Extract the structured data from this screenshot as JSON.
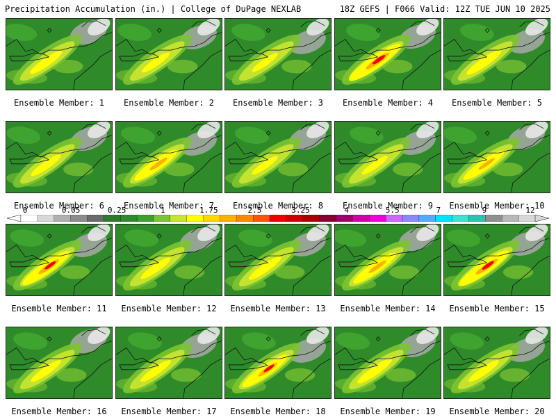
{
  "header": {
    "title_left": "Precipitation Accumulation (in.) | College of DuPage NEXLAB",
    "title_right": "18Z GEFS | F066 Valid: 12Z TUE JUN 10 2025"
  },
  "panels": [
    {
      "label": "Ensemble Member: 1",
      "intensity": 0.35
    },
    {
      "label": "Ensemble Member: 2",
      "intensity": 0.25
    },
    {
      "label": "Ensemble Member: 3",
      "intensity": 0.2
    },
    {
      "label": "Ensemble Member: 4",
      "intensity": 0.8
    },
    {
      "label": "Ensemble Member: 5",
      "intensity": 0.4
    },
    {
      "label": "Ensemble Member: 6",
      "intensity": 0.3
    },
    {
      "label": "Ensemble Member: 7",
      "intensity": 0.6
    },
    {
      "label": "Ensemble Member: 8",
      "intensity": 0.2
    },
    {
      "label": "Ensemble Member: 9",
      "intensity": 0.2
    },
    {
      "label": "Ensemble Member: 10",
      "intensity": 0.55
    },
    {
      "label": "Ensemble Member: 11",
      "intensity": 0.7
    },
    {
      "label": "Ensemble Member: 12",
      "intensity": 0.3
    },
    {
      "label": "Ensemble Member: 13",
      "intensity": 0.35
    },
    {
      "label": "Ensemble Member: 14",
      "intensity": 0.6
    },
    {
      "label": "Ensemble Member: 15",
      "intensity": 0.75
    },
    {
      "label": "Ensemble Member: 16",
      "intensity": 0.3
    },
    {
      "label": "Ensemble Member: 17",
      "intensity": 0.3
    },
    {
      "label": "Ensemble Member: 18",
      "intensity": 0.65
    },
    {
      "label": "Ensemble Member: 19",
      "intensity": 0.4
    },
    {
      "label": "Ensemble Member: 20",
      "intensity": 0.3
    }
  ],
  "colorbar": {
    "tick_labels": [
      "0",
      "0.05",
      "0.25",
      "1",
      "1.75",
      "2.5",
      "3.25",
      "4",
      "5.5",
      "7",
      "9",
      "12"
    ],
    "colors": [
      "#ffffff",
      "#d8d8d8",
      "#b0b0b0",
      "#8c8c8c",
      "#6a6a6a",
      "#2d7a2a",
      "#2f8a2a",
      "#3aa02e",
      "#7cc431",
      "#c8e430",
      "#ffff00",
      "#ffd700",
      "#ffb000",
      "#ff8800",
      "#ff5500",
      "#ee0000",
      "#cc0000",
      "#a80000",
      "#880030",
      "#a00070",
      "#cc00aa",
      "#ee00dd",
      "#cc66ff",
      "#8888ff",
      "#55aaff",
      "#00e0ff",
      "#40e0d0",
      "#30c0b0",
      "#909090",
      "#b8b8b8",
      "#d8d8d8"
    ]
  }
}
